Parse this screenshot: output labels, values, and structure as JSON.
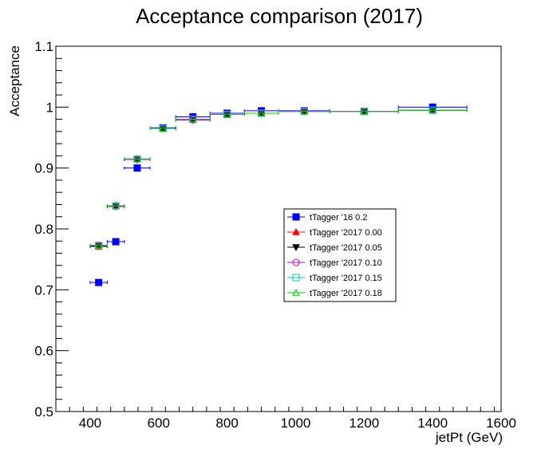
{
  "chart_data": {
    "type": "scatter",
    "title": "Acceptance comparison (2017)",
    "xlabel": "jetPt (GeV)",
    "ylabel": "Acceptance",
    "xlim": [
      300,
      1600
    ],
    "ylim": [
      0.5,
      1.1
    ],
    "x_ticks": [
      400,
      600,
      800,
      1000,
      1200,
      1400,
      1600
    ],
    "y_ticks": [
      0.5,
      0.6,
      0.7,
      0.8,
      0.9,
      1,
      1.1
    ],
    "y_tick_labels": [
      "0.5",
      "0.6",
      "0.7",
      "0.8",
      "0.9",
      "1",
      "1.1"
    ],
    "grid": false,
    "legend_position": "center-right",
    "bins_2016": {
      "x": [
        425,
        475,
        537.5,
        612.5,
        700,
        800,
        900,
        1025,
        1200,
        1400
      ],
      "xerr": [
        25,
        25,
        37.5,
        37.5,
        50,
        50,
        50,
        75,
        100,
        100
      ]
    },
    "bins_2017": {
      "x": [
        425,
        475,
        537.5,
        612.5,
        700,
        800,
        900,
        1025,
        1200,
        1400
      ],
      "xerr": [
        25,
        25,
        37.5,
        37.5,
        50,
        50,
        50,
        75,
        100,
        100
      ]
    },
    "series": [
      {
        "name": "tTagger '16 0.2",
        "color": "#0000ff",
        "marker": "square-filled",
        "bins": "bins_2016",
        "values": [
          0.712,
          0.779,
          0.9,
          0.966,
          0.984,
          0.99,
          0.994,
          0.994,
          0.993,
          1.0
        ]
      },
      {
        "name": "tTagger '2017 0.00",
        "color": "#ff0000",
        "marker": "triangle-up-filled",
        "bins": "bins_2017",
        "values": [
          0.771,
          0.837,
          0.914,
          0.965,
          0.979,
          0.988,
          0.99,
          0.993,
          0.993,
          0.995
        ]
      },
      {
        "name": "tTagger '2017 0.05",
        "color": "#000000",
        "marker": "triangle-down-filled",
        "bins": "bins_2017",
        "values": [
          0.772,
          0.837,
          0.914,
          0.965,
          0.979,
          0.988,
          0.99,
          0.993,
          0.993,
          0.995
        ]
      },
      {
        "name": "tTagger '2017 0.10",
        "color": "#cc00cc",
        "marker": "circle-open",
        "bins": "bins_2017",
        "values": [
          0.773,
          0.837,
          0.914,
          0.965,
          0.979,
          0.988,
          0.99,
          0.993,
          0.993,
          0.995
        ]
      },
      {
        "name": "tTagger '2017 0.15",
        "color": "#00cccc",
        "marker": "square-open",
        "bins": "bins_2017",
        "values": [
          0.773,
          0.838,
          0.915,
          0.965,
          0.98,
          0.988,
          0.99,
          0.993,
          0.993,
          0.995
        ]
      },
      {
        "name": "tTagger '2017 0.18",
        "color": "#00cc00",
        "marker": "triangle-up-open",
        "bins": "bins_2017",
        "values": [
          0.773,
          0.838,
          0.915,
          0.965,
          0.98,
          0.988,
          0.99,
          0.993,
          0.993,
          0.995
        ]
      }
    ]
  }
}
